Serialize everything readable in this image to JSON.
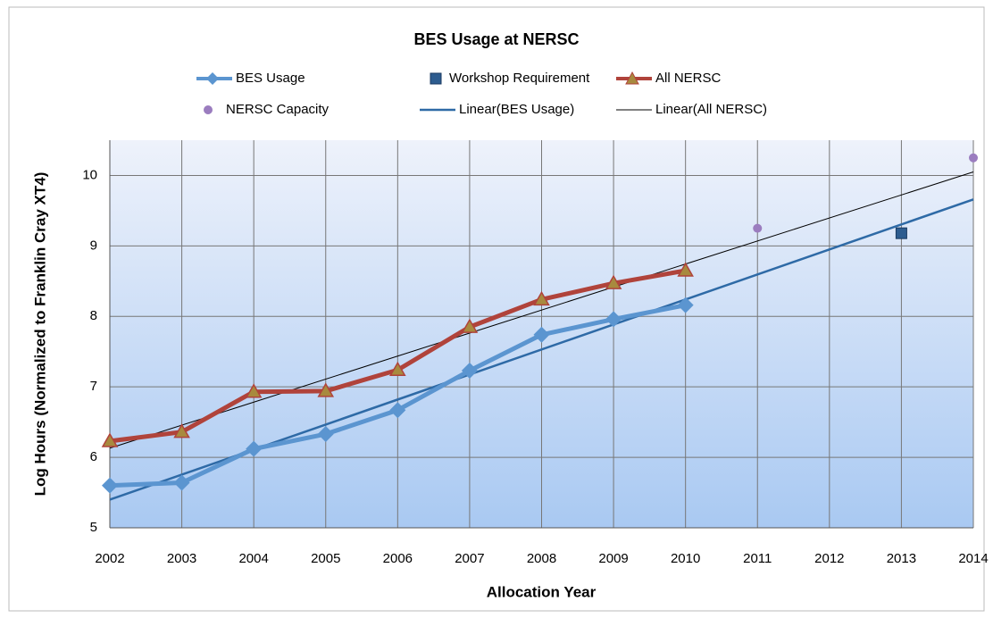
{
  "chart_data": {
    "type": "line",
    "title": "BES Usage at NERSC",
    "x_label": "Allocation Year",
    "y_label": "Log Hours (Normalized to Franklin Cray XT4)",
    "xlim": [
      2002,
      2014
    ],
    "xticks": [
      2002,
      2003,
      2004,
      2005,
      2006,
      2007,
      2008,
      2009,
      2010,
      2011,
      2012,
      2013,
      2014
    ],
    "ylim": [
      5,
      10.5
    ],
    "yticks": [
      5,
      6,
      7,
      8,
      9,
      10
    ],
    "grid": true,
    "series": [
      {
        "name": "BES Usage",
        "color": "#5b95d0",
        "marker": "diamond",
        "line_width": 5,
        "x": [
          2002,
          2003,
          2004,
          2005,
          2006,
          2007,
          2008,
          2009,
          2010
        ],
        "values": [
          5.6,
          5.64,
          6.12,
          6.33,
          6.67,
          7.23,
          7.74,
          7.96,
          8.16
        ]
      },
      {
        "name": "Workshop Requirement",
        "color": "#2d5c8f",
        "marker": "square",
        "line_width": 0,
        "x": [
          2013
        ],
        "values": [
          9.18
        ]
      },
      {
        "name": "All NERSC",
        "color": "#b0433b",
        "marker": "triangle",
        "marker_color": "#a88a3e",
        "line_width": 5,
        "x": [
          2002,
          2003,
          2004,
          2005,
          2006,
          2007,
          2008,
          2009,
          2010
        ],
        "values": [
          6.23,
          6.36,
          6.93,
          6.94,
          7.24,
          7.85,
          8.24,
          8.47,
          8.65
        ]
      },
      {
        "name": "NERSC Capacity",
        "color": "#9b7dbf",
        "marker": "circle",
        "line_width": 0,
        "x": [
          2011,
          2014
        ],
        "values": [
          9.25,
          10.25
        ]
      },
      {
        "name": "Linear(BES Usage)",
        "color": "#2e6aa6",
        "marker": "none",
        "line_width": 2.5,
        "x": [
          2002,
          2014
        ],
        "values": [
          5.4,
          9.66
        ]
      },
      {
        "name": "Linear(All NERSC)",
        "color": "#000000",
        "marker": "none",
        "line_width": 1,
        "x": [
          2002,
          2014
        ],
        "values": [
          6.13,
          10.05
        ]
      }
    ]
  }
}
